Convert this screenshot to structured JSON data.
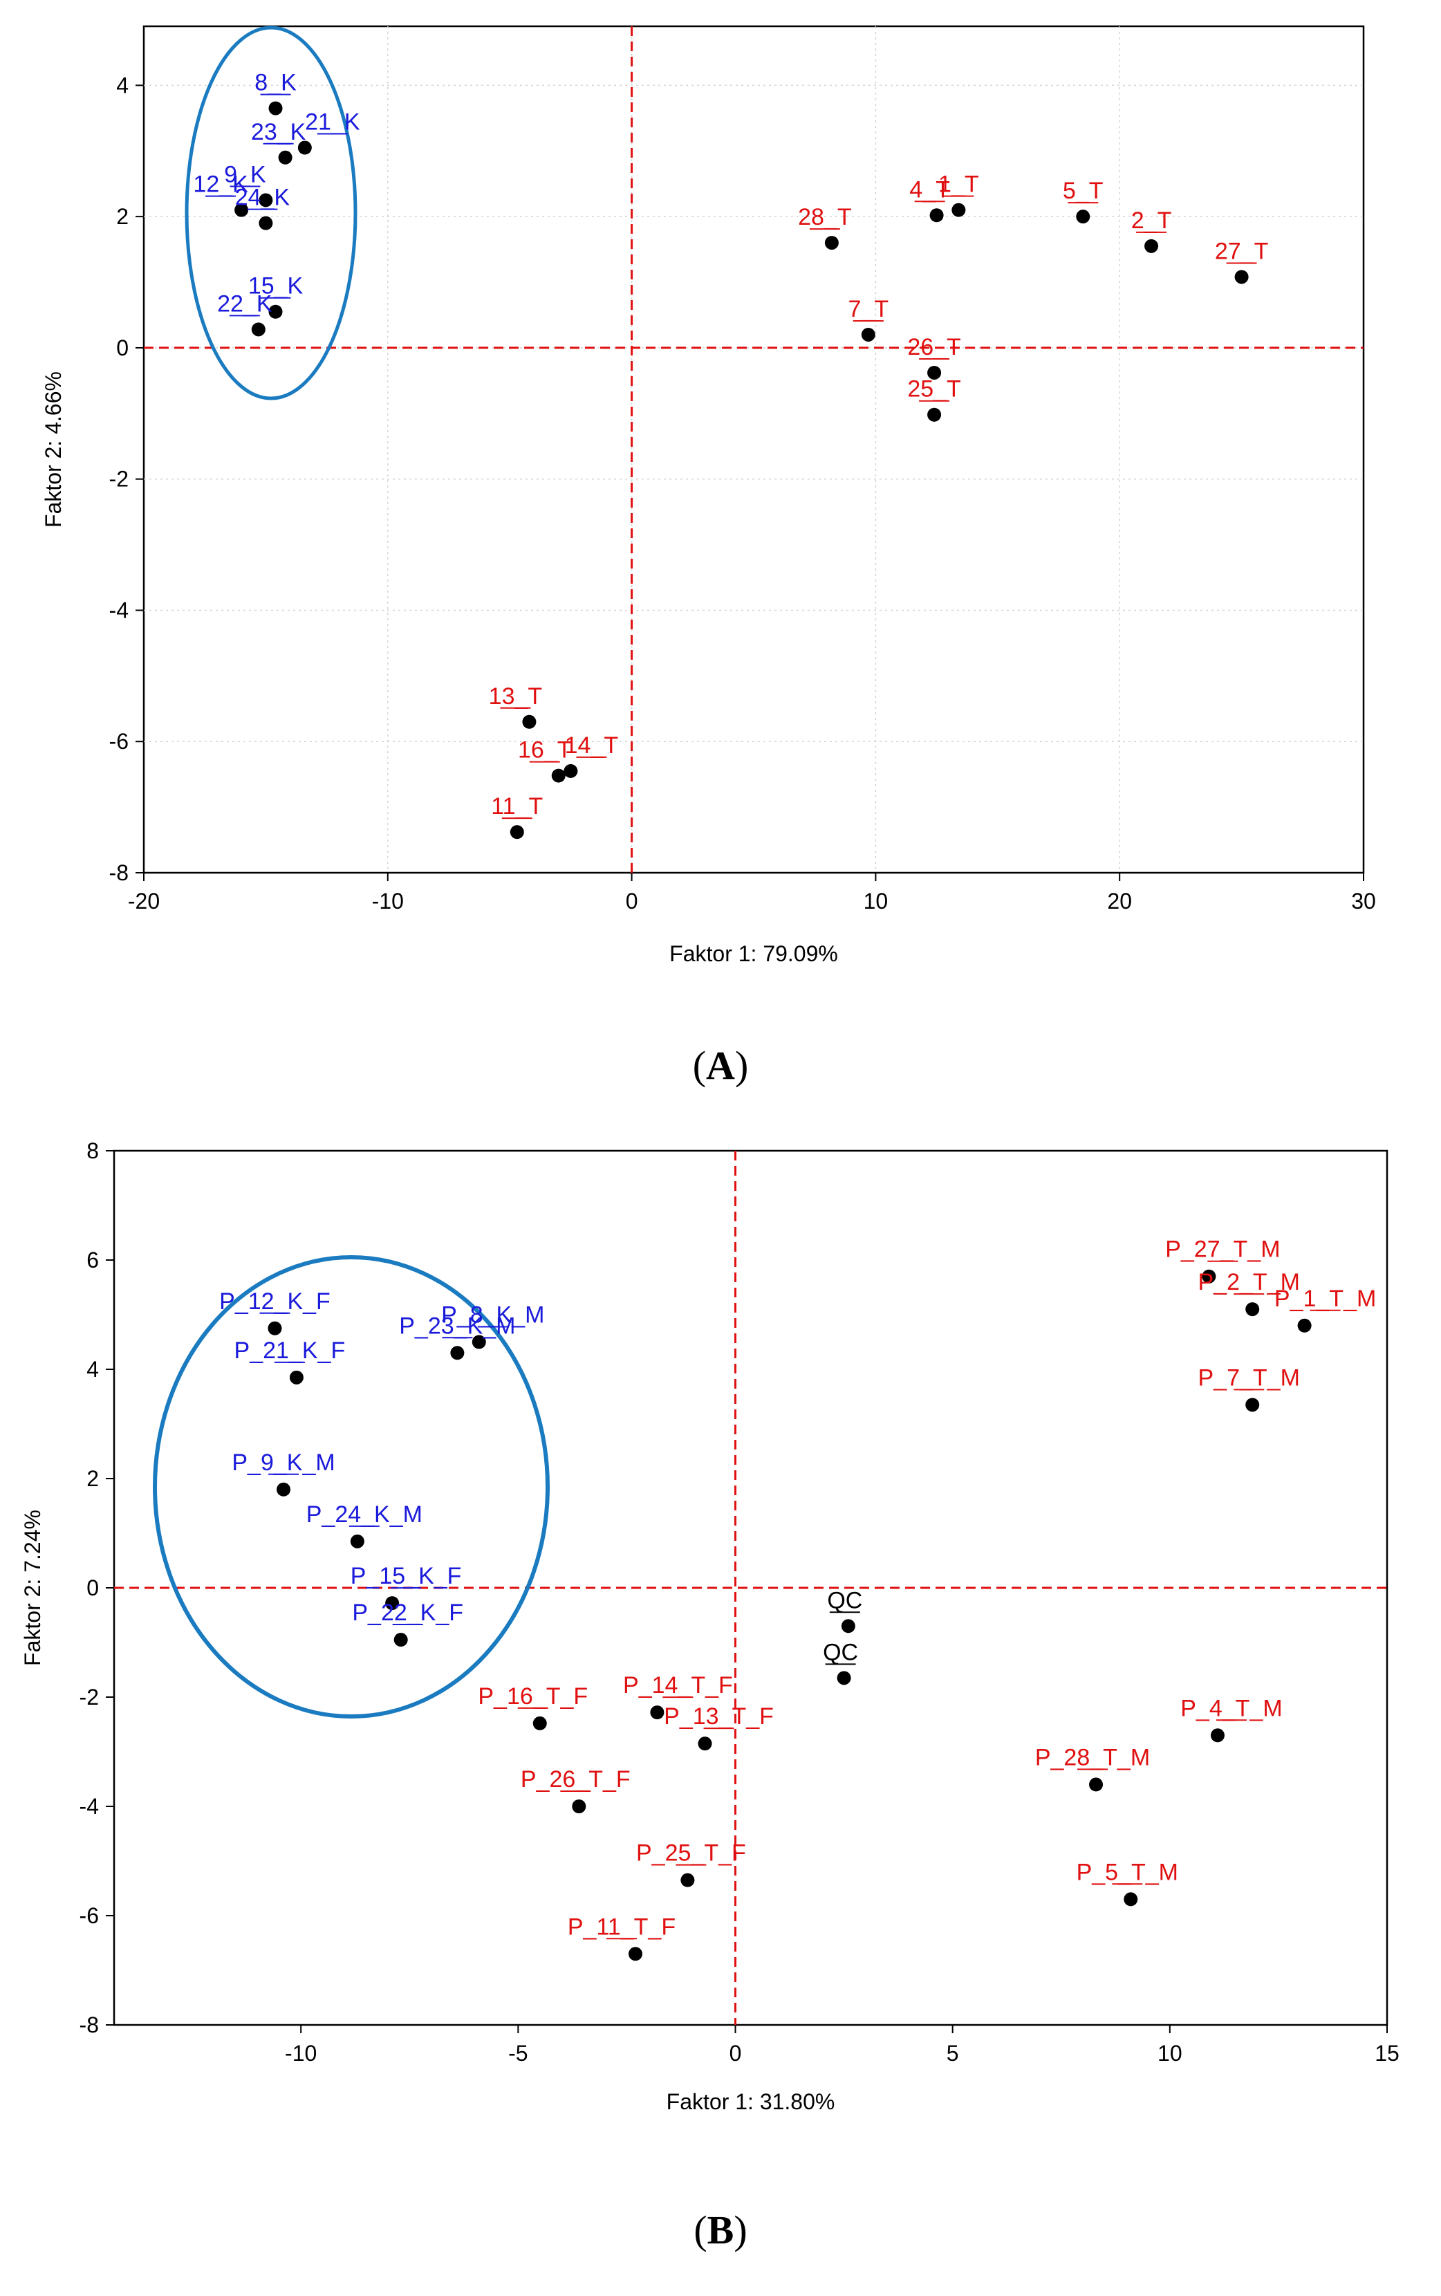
{
  "panels": {
    "A": {
      "label_open": "(",
      "label_letter": "A",
      "label_close": ")"
    },
    "B": {
      "label_open": "(",
      "label_letter": "B",
      "label_close": ")"
    }
  },
  "colors": {
    "group_K": "#1a1adb",
    "group_T": "#e01010",
    "group_QC": "#000000",
    "ellipse": "#1a7bc0",
    "zero_line": "#e01010"
  },
  "chart_data": [
    {
      "type": "scatter",
      "panel": "A",
      "xlabel": "Faktor 1: 79.09%",
      "ylabel": "Faktor 2:  4.66%",
      "xlim": [
        -20,
        30
      ],
      "ylim": [
        -8,
        4.9
      ],
      "xticks": [
        -20,
        -10,
        0,
        10,
        20,
        30
      ],
      "yticks": [
        -8,
        -6,
        -4,
        -2,
        0,
        2,
        4
      ],
      "grid": true,
      "zero_lines": true,
      "ellipse_group": "K",
      "points": [
        {
          "label": "8_K",
          "x": -14.6,
          "y": 3.65,
          "group": "K"
        },
        {
          "label": "21_K",
          "x": -13.4,
          "y": 3.05,
          "group": "K"
        },
        {
          "label": "23_K",
          "x": -14.2,
          "y": 2.9,
          "group": "K"
        },
        {
          "label": "9_K",
          "x": -15.0,
          "y": 2.25,
          "group": "K"
        },
        {
          "label": "12_K",
          "x": -16.0,
          "y": 2.1,
          "group": "K"
        },
        {
          "label": "24_K",
          "x": -15.0,
          "y": 1.9,
          "group": "K"
        },
        {
          "label": "15_K",
          "x": -14.6,
          "y": 0.55,
          "group": "K"
        },
        {
          "label": "22_K",
          "x": -15.3,
          "y": 0.28,
          "group": "K"
        },
        {
          "label": "1_T",
          "x": 13.4,
          "y": 2.1,
          "group": "T"
        },
        {
          "label": "4_T",
          "x": 12.5,
          "y": 2.02,
          "group": "T"
        },
        {
          "label": "5_T",
          "x": 18.5,
          "y": 2.0,
          "group": "T"
        },
        {
          "label": "28_T",
          "x": 8.2,
          "y": 1.6,
          "group": "T"
        },
        {
          "label": "2_T",
          "x": 21.3,
          "y": 1.55,
          "group": "T"
        },
        {
          "label": "27_T",
          "x": 25.0,
          "y": 1.08,
          "group": "T"
        },
        {
          "label": "7_T",
          "x": 9.7,
          "y": 0.2,
          "group": "T"
        },
        {
          "label": "26_T",
          "x": 12.4,
          "y": -0.38,
          "group": "T"
        },
        {
          "label": "25_T",
          "x": 12.4,
          "y": -1.02,
          "group": "T"
        },
        {
          "label": "13_T",
          "x": -4.2,
          "y": -5.7,
          "group": "T"
        },
        {
          "label": "14_T",
          "x": -2.5,
          "y": -6.45,
          "group": "T"
        },
        {
          "label": "16_T",
          "x": -3.0,
          "y": -6.52,
          "group": "T"
        },
        {
          "label": "11_T",
          "x": -4.7,
          "y": -7.38,
          "group": "T"
        }
      ]
    },
    {
      "type": "scatter",
      "panel": "B",
      "xlabel": "Faktor 1: 31.80%",
      "ylabel": "Faktor 2:  7.24%",
      "xlim": [
        -14.3,
        15
      ],
      "ylim": [
        -8,
        8
      ],
      "xticks": [
        -10,
        -5,
        0,
        5,
        10,
        15
      ],
      "yticks": [
        -8,
        -6,
        -4,
        -2,
        0,
        2,
        4,
        6,
        8
      ],
      "grid": false,
      "zero_lines": true,
      "ellipse_group": "K",
      "points": [
        {
          "label": "P_12_K_F",
          "x": -10.6,
          "y": 4.75,
          "group": "K"
        },
        {
          "label": "P_8_K_M",
          "x": -5.9,
          "y": 4.5,
          "group": "K"
        },
        {
          "label": "P_23_K_M",
          "x": -6.4,
          "y": 4.3,
          "group": "K"
        },
        {
          "label": "P_21_K_F",
          "x": -10.1,
          "y": 3.85,
          "group": "K"
        },
        {
          "label": "P_9_K_M",
          "x": -10.4,
          "y": 1.8,
          "group": "K"
        },
        {
          "label": "P_24_K_M",
          "x": -8.7,
          "y": 0.85,
          "group": "K"
        },
        {
          "label": "P_15_K_F",
          "x": -7.9,
          "y": -0.28,
          "group": "K"
        },
        {
          "label": "P_22_K_F",
          "x": -7.7,
          "y": -0.95,
          "group": "K"
        },
        {
          "label": "P_27_T_M",
          "x": 10.9,
          "y": 5.7,
          "group": "T"
        },
        {
          "label": "P_2_T_M",
          "x": 11.9,
          "y": 5.1,
          "group": "T"
        },
        {
          "label": "P_1_T_M",
          "x": 13.1,
          "y": 4.8,
          "group": "T"
        },
        {
          "label": "P_7_T_M",
          "x": 11.9,
          "y": 3.35,
          "group": "T"
        },
        {
          "label": "QC",
          "x": 2.6,
          "y": -0.7,
          "group": "QC"
        },
        {
          "label": "QC",
          "x": 2.5,
          "y": -1.65,
          "group": "QC"
        },
        {
          "label": "P_14_T_F",
          "x": -1.8,
          "y": -2.28,
          "group": "T"
        },
        {
          "label": "P_16_T_F",
          "x": -4.5,
          "y": -2.48,
          "group": "T"
        },
        {
          "label": "P_13_T_F",
          "x": -0.7,
          "y": -2.85,
          "group": "T"
        },
        {
          "label": "P_4_T_M",
          "x": 11.1,
          "y": -2.7,
          "group": "T"
        },
        {
          "label": "P_28_T_M",
          "x": 8.3,
          "y": -3.6,
          "group": "T"
        },
        {
          "label": "P_26_T_F",
          "x": -3.6,
          "y": -4.0,
          "group": "T"
        },
        {
          "label": "P_25_T_F",
          "x": -1.1,
          "y": -5.35,
          "group": "T"
        },
        {
          "label": "P_5_T_M",
          "x": 9.1,
          "y": -5.7,
          "group": "T"
        },
        {
          "label": "P_11_T_F",
          "x": -2.3,
          "y": -6.7,
          "group": "T"
        }
      ]
    }
  ]
}
